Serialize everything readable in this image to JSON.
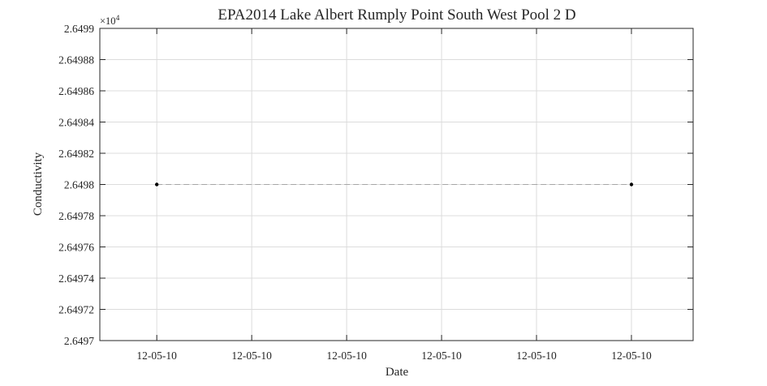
{
  "chart_data": {
    "type": "line",
    "title": "EPA2014 Lake Albert Rumply Point South West Pool 2 D",
    "xlabel": "Date",
    "ylabel": "Conductivity",
    "y_multiplier": "×10",
    "y_multiplier_exponent": "4",
    "ylim": [
      2.6497,
      2.6499
    ],
    "y_ticks": [
      "2.6497",
      "2.64972",
      "2.64974",
      "2.64976",
      "2.64978",
      "2.6498",
      "2.64982",
      "2.64984",
      "2.64986",
      "2.64988",
      "2.6499"
    ],
    "x_ticks": [
      "12-05-10",
      "12-05-10",
      "12-05-10",
      "12-05-10",
      "12-05-10",
      "12-05-10"
    ],
    "grid": true,
    "series": [
      {
        "x": [
          "12-05-10",
          "12-05-10"
        ],
        "values": [
          2.6498,
          2.6498
        ],
        "color": "#000000",
        "line_style": "dashed",
        "line_color": "#a6a6a6",
        "marker": "dot"
      }
    ]
  }
}
